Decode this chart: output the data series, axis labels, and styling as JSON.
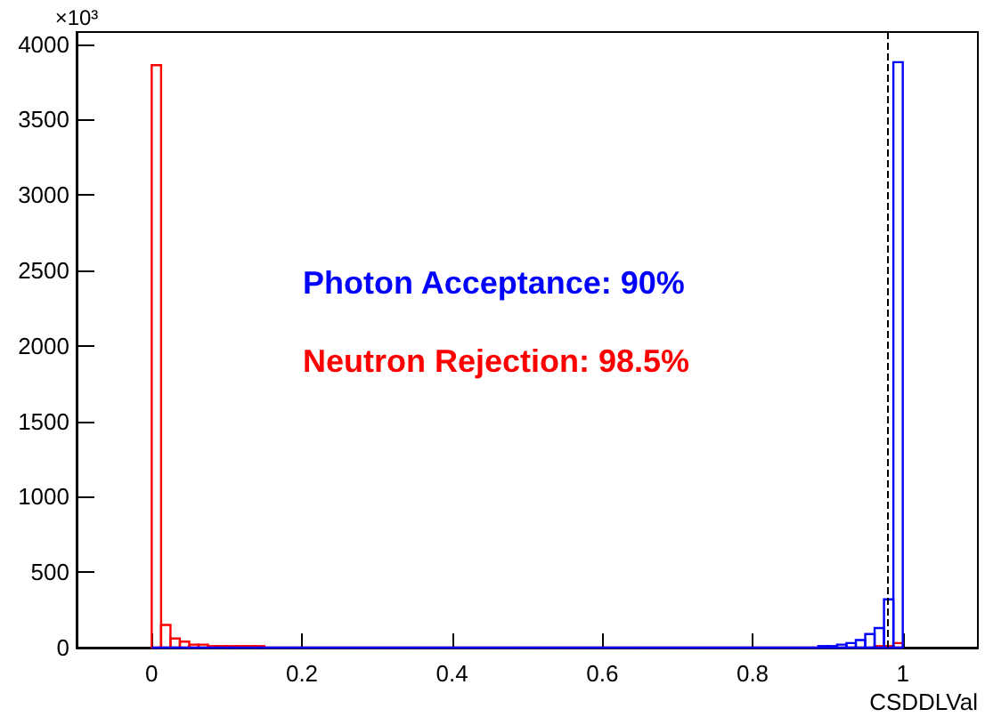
{
  "chart_data": {
    "type": "histogram",
    "xlabel": "CSDDLVal",
    "ylabel": "×10³",
    "bins": [
      0,
      0.0125,
      0.025,
      0.0375,
      0.05,
      0.0625,
      0.075,
      0.0875,
      0.1,
      0.1125,
      0.125,
      0.1375,
      0.15,
      0.1625,
      0.175,
      0.1875,
      0.2,
      0.2125,
      0.225,
      0.2375,
      0.25,
      0.2625,
      0.275,
      0.2875,
      0.3,
      0.3125,
      0.325,
      0.3375,
      0.35,
      0.3625,
      0.375,
      0.3875,
      0.4,
      0.4125,
      0.425,
      0.4375,
      0.45,
      0.4625,
      0.475,
      0.4875,
      0.5,
      0.5125,
      0.525,
      0.5375,
      0.55,
      0.5625,
      0.575,
      0.5875,
      0.6,
      0.6125,
      0.625,
      0.6375,
      0.65,
      0.6625,
      0.675,
      0.6875,
      0.7,
      0.7125,
      0.725,
      0.7375,
      0.75,
      0.7625,
      0.775,
      0.7875,
      0.8,
      0.8125,
      0.825,
      0.8375,
      0.85,
      0.8625,
      0.875,
      0.8875,
      0.9,
      0.9125,
      0.925,
      0.9375,
      0.95,
      0.9625,
      0.975,
      0.9875,
      1
    ],
    "series": [
      {
        "color": "#ff0000",
        "values": [
          3860,
          150,
          60,
          40,
          20,
          20,
          10,
          10,
          10,
          10,
          10,
          10,
          0,
          0,
          0,
          0,
          0,
          0,
          0,
          0,
          0,
          0,
          0,
          0,
          0,
          0,
          0,
          0,
          0,
          0,
          0,
          0,
          0,
          0,
          0,
          0,
          0,
          0,
          0,
          0,
          0,
          0,
          0,
          0,
          0,
          0,
          0,
          0,
          0,
          0,
          0,
          0,
          0,
          0,
          0,
          0,
          0,
          0,
          0,
          0,
          0,
          0,
          0,
          0,
          0,
          0,
          0,
          0,
          0,
          0,
          0,
          0,
          0,
          0,
          0,
          0,
          0,
          10,
          10,
          30
        ]
      },
      {
        "color": "#0000ff",
        "values": [
          0,
          0,
          0,
          0,
          0,
          0,
          0,
          0,
          0,
          0,
          0,
          0,
          0,
          0,
          0,
          0,
          0,
          0,
          0,
          0,
          0,
          0,
          0,
          0,
          0,
          0,
          0,
          0,
          0,
          0,
          0,
          0,
          0,
          0,
          0,
          0,
          0,
          0,
          0,
          0,
          0,
          0,
          0,
          0,
          0,
          0,
          0,
          0,
          0,
          0,
          0,
          0,
          0,
          0,
          0,
          0,
          0,
          0,
          0,
          0,
          0,
          0,
          0,
          0,
          0,
          0,
          0,
          0,
          0,
          0,
          0,
          10,
          10,
          20,
          30,
          50,
          90,
          130,
          320,
          3880
        ]
      }
    ],
    "annotations": [
      "Photon Acceptance: 90%",
      "Neutron Rejection: 98.5%"
    ],
    "xlim": [
      -0.1,
      1.1
    ],
    "xticks": [
      0,
      0.2,
      0.4,
      0.6,
      0.8,
      1
    ],
    "ylim": [
      0,
      4080
    ],
    "yticks": [
      0,
      500,
      1000,
      1500,
      2000,
      2500,
      3000,
      3500,
      4000
    ],
    "ref_lines": [
      {
        "axis": "x",
        "value": 0.98,
        "color": "#000000",
        "line_style": "dashed"
      }
    ],
    "grid": false
  }
}
